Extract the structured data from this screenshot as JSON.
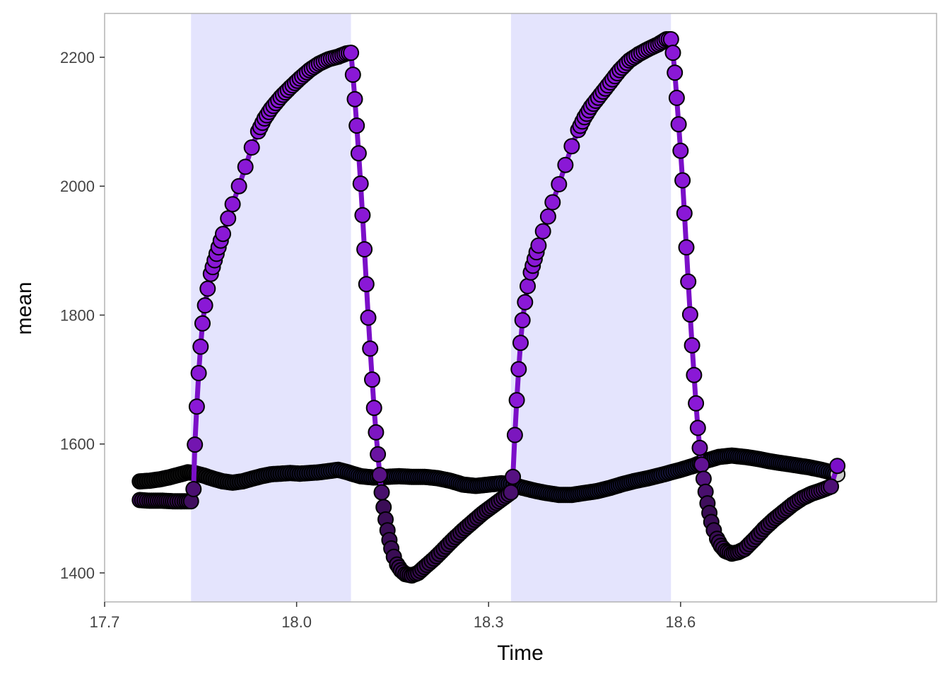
{
  "chart_data": {
    "type": "line",
    "title": "",
    "xlabel": "Time",
    "ylabel": "mean",
    "xlim": [
      17.7,
      19.0
    ],
    "ylim": [
      1355,
      2268
    ],
    "x_ticks": [
      "17.7",
      "18.0",
      "18.3",
      "18.6"
    ],
    "y_ticks": [
      "1400",
      "1600",
      "1800",
      "2000",
      "2200"
    ],
    "grid": false,
    "legend": "none",
    "shaded_intervals": [
      [
        17.835,
        18.085
      ],
      [
        18.335,
        18.585
      ]
    ],
    "shade_color": "#e4e4fd",
    "series": [
      {
        "color": "#7b0fc8",
        "marker_fill": "gradient black-to-purple",
        "points": [
          [
            17.755,
            1513
          ],
          [
            17.77,
            1512
          ],
          [
            17.79,
            1512
          ],
          [
            17.81,
            1511
          ],
          [
            17.825,
            1511
          ],
          [
            17.835,
            1511
          ],
          [
            17.839,
            1530
          ],
          [
            17.841,
            1599
          ],
          [
            17.844,
            1658
          ],
          [
            17.847,
            1710
          ],
          [
            17.85,
            1751
          ],
          [
            17.853,
            1787
          ],
          [
            17.857,
            1815
          ],
          [
            17.861,
            1841
          ],
          [
            17.866,
            1864
          ],
          [
            17.872,
            1885
          ],
          [
            17.878,
            1905
          ],
          [
            17.885,
            1926
          ],
          [
            17.893,
            1950
          ],
          [
            17.9,
            1972
          ],
          [
            17.91,
            2000
          ],
          [
            17.92,
            2030
          ],
          [
            17.93,
            2060
          ],
          [
            17.94,
            2085
          ],
          [
            17.95,
            2105
          ],
          [
            17.96,
            2120
          ],
          [
            17.975,
            2138
          ],
          [
            17.99,
            2153
          ],
          [
            18.005,
            2167
          ],
          [
            18.02,
            2180
          ],
          [
            18.035,
            2190
          ],
          [
            18.05,
            2197
          ],
          [
            18.065,
            2201
          ],
          [
            18.078,
            2206
          ],
          [
            18.085,
            2207
          ],
          [
            18.088,
            2173
          ],
          [
            18.091,
            2135
          ],
          [
            18.094,
            2094
          ],
          [
            18.097,
            2051
          ],
          [
            18.1,
            2004
          ],
          [
            18.103,
            1955
          ],
          [
            18.106,
            1902
          ],
          [
            18.109,
            1848
          ],
          [
            18.112,
            1796
          ],
          [
            18.115,
            1748
          ],
          [
            18.118,
            1700
          ],
          [
            18.121,
            1656
          ],
          [
            18.124,
            1618
          ],
          [
            18.127,
            1584
          ],
          [
            18.13,
            1552
          ],
          [
            18.133,
            1525
          ],
          [
            18.136,
            1502
          ],
          [
            18.139,
            1483
          ],
          [
            18.142,
            1466
          ],
          [
            18.145,
            1451
          ],
          [
            18.148,
            1438
          ],
          [
            18.152,
            1425
          ],
          [
            18.157,
            1413
          ],
          [
            18.163,
            1404
          ],
          [
            18.17,
            1398
          ],
          [
            18.18,
            1396
          ],
          [
            18.19,
            1400
          ],
          [
            18.2,
            1409
          ],
          [
            18.215,
            1422
          ],
          [
            18.23,
            1437
          ],
          [
            18.245,
            1452
          ],
          [
            18.26,
            1466
          ],
          [
            18.275,
            1479
          ],
          [
            18.29,
            1492
          ],
          [
            18.305,
            1503
          ],
          [
            18.32,
            1514
          ],
          [
            18.335,
            1525
          ],
          [
            18.338,
            1549
          ],
          [
            18.341,
            1614
          ],
          [
            18.344,
            1668
          ],
          [
            18.347,
            1716
          ],
          [
            18.35,
            1757
          ],
          [
            18.353,
            1792
          ],
          [
            18.357,
            1820
          ],
          [
            18.361,
            1845
          ],
          [
            18.366,
            1866
          ],
          [
            18.372,
            1887
          ],
          [
            18.378,
            1908
          ],
          [
            18.385,
            1930
          ],
          [
            18.393,
            1953
          ],
          [
            18.4,
            1975
          ],
          [
            18.41,
            2003
          ],
          [
            18.42,
            2033
          ],
          [
            18.43,
            2062
          ],
          [
            18.44,
            2087
          ],
          [
            18.45,
            2107
          ],
          [
            18.46,
            2123
          ],
          [
            18.475,
            2142
          ],
          [
            18.49,
            2161
          ],
          [
            18.505,
            2180
          ],
          [
            18.52,
            2195
          ],
          [
            18.535,
            2205
          ],
          [
            18.55,
            2213
          ],
          [
            18.565,
            2220
          ],
          [
            18.578,
            2228
          ],
          [
            18.585,
            2228
          ],
          [
            18.588,
            2207
          ],
          [
            18.591,
            2176
          ],
          [
            18.594,
            2137
          ],
          [
            18.597,
            2096
          ],
          [
            18.6,
            2055
          ],
          [
            18.603,
            2009
          ],
          [
            18.606,
            1958
          ],
          [
            18.609,
            1905
          ],
          [
            18.612,
            1852
          ],
          [
            18.615,
            1801
          ],
          [
            18.618,
            1753
          ],
          [
            18.621,
            1707
          ],
          [
            18.624,
            1663
          ],
          [
            18.627,
            1625
          ],
          [
            18.63,
            1594
          ],
          [
            18.633,
            1568
          ],
          [
            18.636,
            1546
          ],
          [
            18.639,
            1526
          ],
          [
            18.642,
            1508
          ],
          [
            18.645,
            1493
          ],
          [
            18.648,
            1479
          ],
          [
            18.652,
            1466
          ],
          [
            18.657,
            1453
          ],
          [
            18.663,
            1442
          ],
          [
            18.67,
            1434
          ],
          [
            18.68,
            1430
          ],
          [
            18.69,
            1432
          ],
          [
            18.7,
            1437
          ],
          [
            18.715,
            1452
          ],
          [
            18.73,
            1468
          ],
          [
            18.745,
            1482
          ],
          [
            18.76,
            1494
          ],
          [
            18.775,
            1506
          ],
          [
            18.79,
            1516
          ],
          [
            18.805,
            1523
          ],
          [
            18.82,
            1528
          ],
          [
            18.835,
            1534
          ],
          [
            18.845,
            1566
          ]
        ]
      },
      {
        "color": "#000000",
        "marker_fill": "gradient black-to-navy",
        "points": [
          [
            17.755,
            1542
          ],
          [
            17.77,
            1543
          ],
          [
            17.785,
            1545
          ],
          [
            17.8,
            1548
          ],
          [
            17.815,
            1552
          ],
          [
            17.83,
            1556
          ],
          [
            17.84,
            1555
          ],
          [
            17.855,
            1551
          ],
          [
            17.87,
            1546
          ],
          [
            17.885,
            1542
          ],
          [
            17.9,
            1540
          ],
          [
            17.915,
            1542
          ],
          [
            17.93,
            1546
          ],
          [
            17.945,
            1550
          ],
          [
            17.96,
            1553
          ],
          [
            17.975,
            1554
          ],
          [
            17.99,
            1555
          ],
          [
            18.005,
            1554
          ],
          [
            18.02,
            1555
          ],
          [
            18.035,
            1556
          ],
          [
            18.05,
            1558
          ],
          [
            18.065,
            1560
          ],
          [
            18.08,
            1556
          ],
          [
            18.1,
            1550
          ],
          [
            18.12,
            1548
          ],
          [
            18.14,
            1549
          ],
          [
            18.16,
            1550
          ],
          [
            18.18,
            1549
          ],
          [
            18.2,
            1549
          ],
          [
            18.22,
            1547
          ],
          [
            18.24,
            1543
          ],
          [
            18.26,
            1537
          ],
          [
            18.28,
            1535
          ],
          [
            18.3,
            1537
          ],
          [
            18.32,
            1539
          ],
          [
            18.335,
            1538
          ],
          [
            18.35,
            1533
          ],
          [
            18.37,
            1528
          ],
          [
            18.39,
            1524
          ],
          [
            18.41,
            1521
          ],
          [
            18.43,
            1521
          ],
          [
            18.45,
            1524
          ],
          [
            18.47,
            1527
          ],
          [
            18.49,
            1532
          ],
          [
            18.51,
            1538
          ],
          [
            18.53,
            1543
          ],
          [
            18.55,
            1547
          ],
          [
            18.57,
            1552
          ],
          [
            18.585,
            1556
          ],
          [
            18.6,
            1560
          ],
          [
            18.62,
            1566
          ],
          [
            18.64,
            1574
          ],
          [
            18.66,
            1580
          ],
          [
            18.68,
            1582
          ],
          [
            18.7,
            1580
          ],
          [
            18.72,
            1577
          ],
          [
            18.74,
            1573
          ],
          [
            18.76,
            1570
          ],
          [
            18.78,
            1567
          ],
          [
            18.8,
            1564
          ],
          [
            18.82,
            1560
          ],
          [
            18.835,
            1556
          ],
          [
            18.845,
            1553
          ]
        ]
      }
    ]
  }
}
